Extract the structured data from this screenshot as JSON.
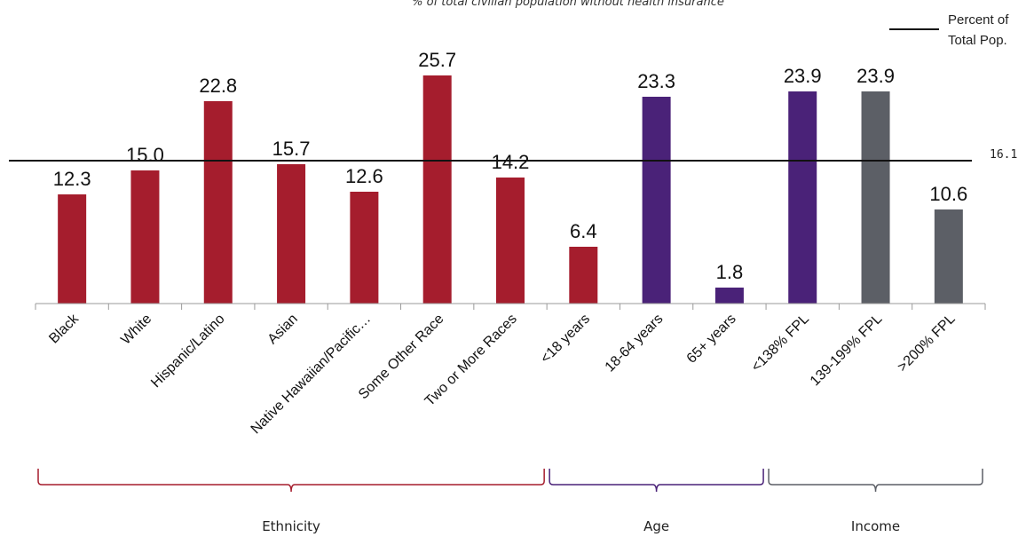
{
  "chart_data": {
    "type": "bar",
    "subtitle": "% of total civilian population without health insurance",
    "categories": [
      "Black",
      "White",
      "Hispanic/Latino",
      "Asian",
      "Native Hawaiian/Pacific…",
      "Some Other Race",
      "Two or More Races",
      "<18 years",
      "18-64 years",
      "65+ years",
      "<138% FPL",
      "139-199% FPL",
      ">200% FPL"
    ],
    "values": [
      12.3,
      15.0,
      22.8,
      15.7,
      12.6,
      25.7,
      14.2,
      6.4,
      23.3,
      1.8,
      23.9,
      23.9,
      10.6
    ],
    "value_labels": [
      "12.3",
      "15.0",
      "22.8",
      "15.7",
      "12.6",
      "25.7",
      "14.2",
      "6.4",
      "23.3",
      "1.8",
      "23.9",
      "23.9",
      "10.6"
    ],
    "bar_colors": [
      "#a51d2d",
      "#a51d2d",
      "#a51d2d",
      "#a51d2d",
      "#a51d2d",
      "#a51d2d",
      "#a51d2d",
      "#a51d2d",
      "#4a2278",
      "#4a2278",
      "#4a2278",
      "#5c5f66",
      "#5c5f66"
    ],
    "reference_line": {
      "value": 16.1,
      "label": "16.1",
      "color": "#111111"
    },
    "legend": {
      "line_label_1": "Percent of",
      "line_label_2": "Total Pop.",
      "placement": "top-right"
    },
    "groups": [
      {
        "label": "Ethnicity",
        "start": 0,
        "end": 7,
        "color": "#a51d2d"
      },
      {
        "label": "Age",
        "start": 7,
        "end": 10,
        "color": "#4a2278"
      },
      {
        "label": "Income",
        "start": 10,
        "end": 13,
        "color": "#5c5f66"
      }
    ],
    "ylim": [
      0,
      30
    ],
    "grid": false
  }
}
